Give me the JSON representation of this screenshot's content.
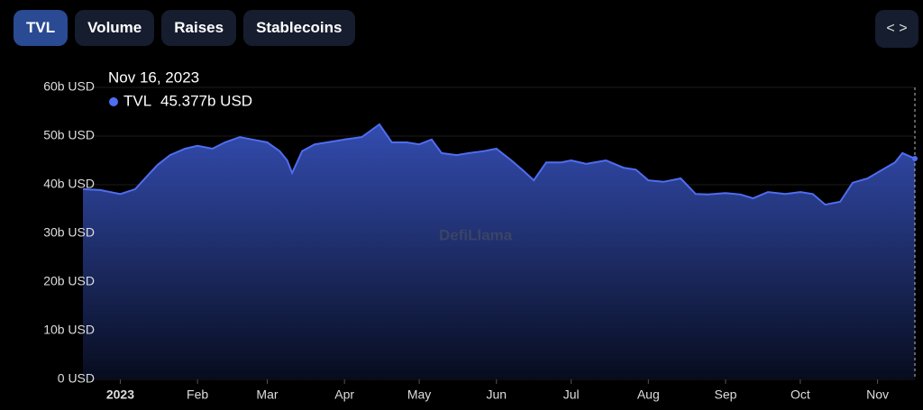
{
  "tabs": [
    "TVL",
    "Volume",
    "Raises",
    "Stablecoins"
  ],
  "chart_data": {
    "type": "area",
    "watermark": "DefiLlama",
    "x": [
      "2022-12-17",
      "2022-12-24",
      "2023-01-01",
      "2023-01-07",
      "2023-01-12",
      "2023-01-16",
      "2023-01-21",
      "2023-01-27",
      "2023-02-01",
      "2023-02-07",
      "2023-02-12",
      "2023-02-18",
      "2023-02-23",
      "2023-03-01",
      "2023-03-06",
      "2023-03-09",
      "2023-03-11",
      "2023-03-15",
      "2023-03-20",
      "2023-03-25",
      "2023-04-01",
      "2023-04-08",
      "2023-04-15",
      "2023-04-20",
      "2023-04-26",
      "2023-05-01",
      "2023-05-06",
      "2023-05-10",
      "2023-05-16",
      "2023-05-21",
      "2023-05-27",
      "2023-06-01",
      "2023-06-07",
      "2023-06-12",
      "2023-06-16",
      "2023-06-21",
      "2023-06-27",
      "2023-07-01",
      "2023-07-07",
      "2023-07-15",
      "2023-07-22",
      "2023-07-27",
      "2023-08-01",
      "2023-08-07",
      "2023-08-14",
      "2023-08-20",
      "2023-08-25",
      "2023-09-01",
      "2023-09-07",
      "2023-09-12",
      "2023-09-18",
      "2023-09-25",
      "2023-10-01",
      "2023-10-06",
      "2023-10-11",
      "2023-10-17",
      "2023-10-22",
      "2023-10-28",
      "2023-11-02",
      "2023-11-08",
      "2023-11-11",
      "2023-11-16"
    ],
    "series": [
      {
        "name": "TVL",
        "color": "#4f6df0",
        "values": [
          39.1,
          38.9,
          38.1,
          39.1,
          41.9,
          44.1,
          46.1,
          47.4,
          48.0,
          47.4,
          48.7,
          49.8,
          49.3,
          48.7,
          46.9,
          45.0,
          42.4,
          46.9,
          48.3,
          48.7,
          49.3,
          49.8,
          52.4,
          48.7,
          48.7,
          48.3,
          49.3,
          46.5,
          46.1,
          46.5,
          46.9,
          47.4,
          45.0,
          42.8,
          40.9,
          44.6,
          44.6,
          45.0,
          44.3,
          45.0,
          43.5,
          43.1,
          40.9,
          40.6,
          41.3,
          38.1,
          38.0,
          38.3,
          38.0,
          37.2,
          38.5,
          38.1,
          38.5,
          38.1,
          35.9,
          36.5,
          40.4,
          41.3,
          42.8,
          44.6,
          46.5,
          45.377
        ]
      }
    ],
    "xlim": [
      "2022-12-17",
      "2023-11-16"
    ],
    "xticks": [
      {
        "value": "2023-01-01",
        "label": "2023"
      },
      {
        "value": "2023-02-01",
        "label": "Feb"
      },
      {
        "value": "2023-03-01",
        "label": "Mar"
      },
      {
        "value": "2023-04-01",
        "label": "Apr"
      },
      {
        "value": "2023-05-01",
        "label": "May"
      },
      {
        "value": "2023-06-01",
        "label": "Jun"
      },
      {
        "value": "2023-07-01",
        "label": "Jul"
      },
      {
        "value": "2023-08-01",
        "label": "Aug"
      },
      {
        "value": "2023-09-01",
        "label": "Sep"
      },
      {
        "value": "2023-10-01",
        "label": "Oct"
      },
      {
        "value": "2023-11-01",
        "label": "Nov"
      }
    ],
    "ylim": [
      0,
      60
    ],
    "yticks": [
      {
        "value": 0,
        "label": "0 USD"
      },
      {
        "value": 10,
        "label": "10b USD"
      },
      {
        "value": 20,
        "label": "20b USD"
      },
      {
        "value": 30,
        "label": "30b USD"
      },
      {
        "value": 40,
        "label": "40b USD"
      },
      {
        "value": 50,
        "label": "50b USD"
      },
      {
        "value": 60,
        "label": "60b USD"
      }
    ],
    "grid": true,
    "tooltip": {
      "date": "Nov 16, 2023",
      "series": "TVL",
      "value": 45.377,
      "value_label": "45.377b USD"
    }
  }
}
